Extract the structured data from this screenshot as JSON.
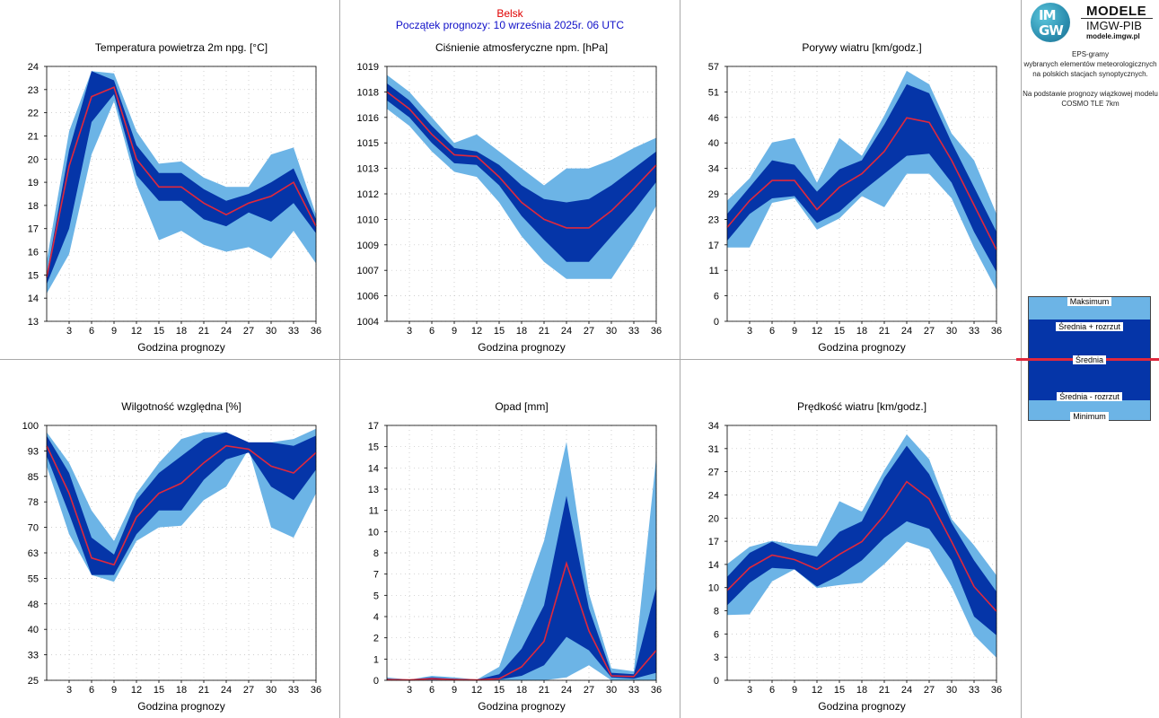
{
  "header": {
    "station": "Belsk",
    "forecast_start": "Początek prognozy: 10 września 2025r. 06 UTC"
  },
  "logo": {
    "circle_top": "IM",
    "circle_bottom": "GW",
    "title": "MODELE",
    "subtitle": "IMGW-PIB",
    "url": "modele.imgw.pl"
  },
  "description": {
    "line1": "EPS-gramy",
    "line2": "wybranych elementów meteorologicznych",
    "line3": "na polskich stacjach  synoptycznych.",
    "line4": "Na podstawie prognozy wiązkowej modelu",
    "line5": "COSMO TLE 7km"
  },
  "legend": {
    "max": "Maksimum",
    "mean_plus": "Średnia + rozrzut",
    "mean": "Średnia",
    "mean_minus": "Średnia - rozrzut",
    "min": "Minimum"
  },
  "colors": {
    "outer_band": "#6cb4e6",
    "inner_band": "#0535a8",
    "mean_line": "#e0283c",
    "grid": "#bfbfbf"
  },
  "chart_data": [
    {
      "type": "area",
      "title": "Temperatura powietrza 2m npg. [°C]",
      "xlabel": "Godzina prognozy",
      "x": [
        0,
        3,
        6,
        9,
        12,
        15,
        18,
        21,
        24,
        27,
        30,
        33,
        36
      ],
      "xticks": [
        "3",
        "6",
        "9",
        "12",
        "15",
        "18",
        "21",
        "24",
        "27",
        "30",
        "33",
        "36"
      ],
      "ylim": [
        13,
        24
      ],
      "yticks": [
        "13",
        "14",
        "15",
        "16",
        "17",
        "18",
        "19",
        "20",
        "21",
        "22",
        "23",
        "24"
      ],
      "series": {
        "max": [
          15.6,
          21.2,
          23.8,
          23.7,
          21.2,
          19.8,
          19.9,
          19.2,
          18.8,
          18.8,
          20.2,
          20.5,
          17.6
        ],
        "mean_plus": [
          15.0,
          20.4,
          23.8,
          23.4,
          20.6,
          19.4,
          19.4,
          18.7,
          18.2,
          18.5,
          19.0,
          19.6,
          17.4
        ],
        "mean": [
          14.9,
          19.7,
          22.7,
          23.1,
          20.0,
          18.8,
          18.8,
          18.1,
          17.6,
          18.1,
          18.4,
          19.0,
          17.1
        ],
        "mean_minus": [
          14.6,
          17.0,
          21.6,
          22.8,
          19.3,
          18.2,
          18.2,
          17.4,
          17.1,
          17.7,
          17.3,
          18.1,
          16.8
        ],
        "min": [
          14.2,
          15.9,
          20.2,
          22.5,
          18.9,
          16.5,
          16.9,
          16.3,
          16.0,
          16.2,
          15.7,
          16.9,
          15.5
        ]
      }
    },
    {
      "type": "area",
      "title": "Ciśnienie atmosferyczne npm. [hPa]",
      "xlabel": "Godzina prognozy",
      "x": [
        0,
        3,
        6,
        9,
        12,
        15,
        18,
        21,
        24,
        27,
        30,
        33,
        36
      ],
      "xticks": [
        "3",
        "6",
        "9",
        "12",
        "15",
        "18",
        "21",
        "24",
        "27",
        "30",
        "33",
        "36"
      ],
      "ylim": [
        1004,
        1019
      ],
      "yticks": [
        "1004",
        "1006",
        "1007",
        "1009",
        "1010",
        "1012",
        "1013",
        "1015",
        "1016",
        "1018",
        "1019"
      ],
      "series": {
        "max": [
          1018.5,
          1017.5,
          1016.0,
          1014.5,
          1015.0,
          1014.0,
          1013.0,
          1012.0,
          1013.0,
          1013.0,
          1013.5,
          1014.2,
          1014.8
        ],
        "mean_plus": [
          1018.0,
          1017.0,
          1015.5,
          1014.2,
          1014.0,
          1013.2,
          1012.0,
          1011.2,
          1011.0,
          1011.2,
          1012.0,
          1013.0,
          1014.0
        ],
        "mean": [
          1017.5,
          1016.5,
          1015.0,
          1013.8,
          1013.7,
          1012.5,
          1011.0,
          1010.0,
          1009.5,
          1009.5,
          1010.5,
          1011.8,
          1013.2
        ],
        "mean_minus": [
          1017.0,
          1016.0,
          1014.5,
          1013.3,
          1013.2,
          1012.0,
          1010.2,
          1008.8,
          1007.5,
          1007.5,
          1009.0,
          1010.5,
          1012.2
        ],
        "min": [
          1016.5,
          1015.5,
          1014.0,
          1012.8,
          1012.5,
          1011.0,
          1009.0,
          1007.5,
          1006.5,
          1006.5,
          1006.5,
          1008.5,
          1010.8
        ]
      }
    },
    {
      "type": "area",
      "title": "Porywy wiatru [km/godz.]",
      "xlabel": "Godzina prognozy",
      "x": [
        0,
        3,
        6,
        9,
        12,
        15,
        18,
        21,
        24,
        27,
        30,
        33,
        36
      ],
      "xticks": [
        "3",
        "6",
        "9",
        "12",
        "15",
        "18",
        "21",
        "24",
        "27",
        "30",
        "33",
        "36"
      ],
      "ylim": [
        0,
        57
      ],
      "yticks": [
        "0",
        "6",
        "11",
        "17",
        "23",
        "29",
        "34",
        "40",
        "46",
        "51",
        "57"
      ],
      "series": {
        "max": [
          27,
          32,
          40,
          41,
          31,
          41,
          37,
          46,
          56,
          53,
          42,
          36,
          24
        ],
        "mean_plus": [
          24,
          30,
          36,
          35,
          29,
          34,
          36,
          44,
          53,
          51,
          40,
          30,
          20
        ],
        "mean": [
          21,
          27,
          31.5,
          31.5,
          25,
          30,
          33,
          38,
          45.5,
          44.5,
          36,
          26,
          16
        ],
        "mean_minus": [
          18,
          24,
          27.5,
          28,
          22,
          24.5,
          29,
          33,
          37,
          37.5,
          31,
          20,
          11
        ],
        "min": [
          16.5,
          16.5,
          26.5,
          27.5,
          20.5,
          23,
          28,
          25.5,
          33,
          33,
          27.5,
          16.5,
          7
        ]
      }
    },
    {
      "type": "area",
      "title": "Wilgotność względna [%]",
      "xlabel": "Godzina prognozy",
      "x": [
        0,
        3,
        6,
        9,
        12,
        15,
        18,
        21,
        24,
        27,
        30,
        33,
        36
      ],
      "xticks": [
        "3",
        "6",
        "9",
        "12",
        "15",
        "18",
        "21",
        "24",
        "27",
        "30",
        "33",
        "36"
      ],
      "ylim": [
        25,
        100
      ],
      "yticks": [
        "25",
        "33",
        "40",
        "48",
        "55",
        "63",
        "70",
        "78",
        "85",
        "93",
        "100"
      ],
      "series": {
        "max": [
          98,
          89,
          75,
          66,
          80,
          89,
          96,
          98,
          98,
          95,
          95,
          96,
          99
        ],
        "mean_plus": [
          97,
          86,
          67,
          62,
          78,
          86,
          91,
          96,
          98,
          95,
          95,
          94,
          97
        ],
        "mean": [
          94,
          80,
          61,
          59,
          73,
          80,
          83,
          89,
          94,
          93,
          88,
          86,
          92
        ],
        "mean_minus": [
          91,
          74,
          56,
          56,
          68,
          75,
          75,
          84,
          90,
          92,
          82,
          78,
          87
        ],
        "min": [
          88,
          68,
          56,
          54,
          66,
          70,
          70.5,
          78,
          82,
          93,
          70,
          67,
          80
        ]
      }
    },
    {
      "type": "area",
      "title": "Opad [mm]",
      "xlabel": "Godzina prognozy",
      "x": [
        0,
        3,
        6,
        9,
        12,
        15,
        18,
        21,
        24,
        27,
        30,
        33,
        36
      ],
      "xticks": [
        "3",
        "6",
        "9",
        "12",
        "15",
        "18",
        "21",
        "24",
        "27",
        "30",
        "33",
        "36"
      ],
      "ylim": [
        0,
        17
      ],
      "yticks": [
        "0",
        "1",
        "2",
        "4",
        "5",
        "7",
        "8",
        "10",
        "11",
        "13",
        "14",
        "15",
        "17"
      ],
      "series": {
        "max": [
          0.2,
          0.05,
          0.3,
          0.2,
          0.05,
          0.9,
          5.0,
          9.3,
          15.9,
          5.8,
          0.8,
          0.6,
          14.9
        ],
        "mean_plus": [
          0.1,
          0.05,
          0.2,
          0.1,
          0.05,
          0.4,
          2.1,
          5.0,
          12.3,
          4.8,
          0.5,
          0.4,
          6.2
        ],
        "mean": [
          0.05,
          0.03,
          0.1,
          0.05,
          0.03,
          0.1,
          0.9,
          2.6,
          7.8,
          3.3,
          0.3,
          0.25,
          2.0
        ],
        "mean_minus": [
          0.02,
          0.01,
          0.05,
          0.02,
          0.01,
          0.05,
          0.3,
          1.0,
          2.9,
          2.0,
          0.2,
          0.1,
          0.5
        ],
        "min": [
          0.0,
          0.0,
          0.0,
          0.0,
          0.0,
          0.0,
          0.0,
          0.0,
          0.2,
          1.0,
          0.0,
          0.0,
          0.0
        ]
      }
    },
    {
      "type": "area",
      "title": "Prędkość wiatru [km/godz.]",
      "xlabel": "Godzina prognozy",
      "x": [
        0,
        3,
        6,
        9,
        12,
        15,
        18,
        21,
        24,
        27,
        30,
        33,
        36
      ],
      "xticks": [
        "3",
        "6",
        "9",
        "12",
        "15",
        "18",
        "21",
        "24",
        "27",
        "30",
        "33",
        "36"
      ],
      "ylim": [
        0,
        34
      ],
      "yticks": [
        "0",
        "3",
        "6",
        "8",
        "10",
        "14",
        "17",
        "20",
        "24",
        "27",
        "31",
        "34"
      ],
      "series": {
        "max": [
          15.5,
          17.8,
          18.6,
          18.1,
          17.9,
          23.9,
          22.5,
          28.0,
          32.8,
          29.5,
          21.5,
          18.0,
          14.0
        ],
        "mean_plus": [
          13.8,
          17.0,
          18.5,
          17.2,
          16.5,
          19.8,
          21.2,
          27.0,
          31.3,
          27.5,
          21.0,
          16.0,
          11.8
        ],
        "mean": [
          12.0,
          15.0,
          16.7,
          16.1,
          14.8,
          16.8,
          18.5,
          22.0,
          26.5,
          24.2,
          18.5,
          12.5,
          9.2
        ],
        "mean_minus": [
          10.0,
          13.0,
          15.0,
          14.8,
          12.5,
          14.0,
          16.0,
          19.0,
          21.2,
          20.2,
          16.0,
          8.5,
          6.0
        ],
        "min": [
          8.7,
          8.8,
          13.2,
          14.8,
          12.3,
          12.7,
          13.0,
          15.5,
          18.5,
          17.5,
          12.5,
          6.0,
          3.0
        ]
      }
    }
  ]
}
